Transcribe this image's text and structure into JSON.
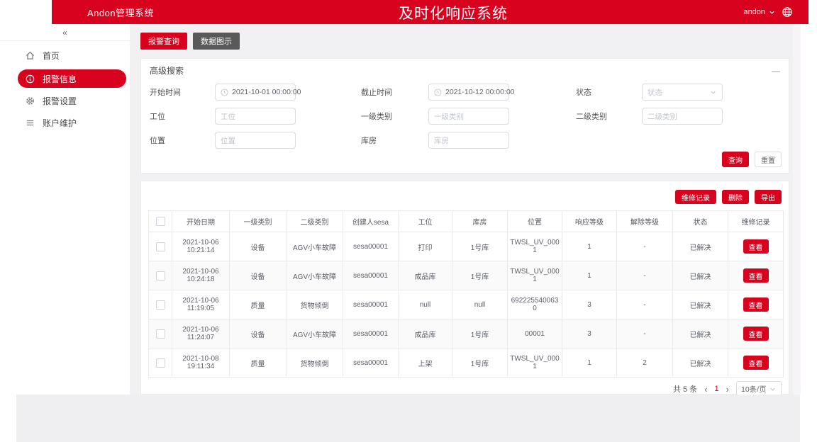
{
  "header": {
    "app_title": "Andon管理系统",
    "page_title": "及时化响应系统",
    "user_name": "andon"
  },
  "sidebar": {
    "collapse_icon": "«",
    "items": [
      {
        "label": "首页"
      },
      {
        "label": "报警信息"
      },
      {
        "label": "报警设置"
      },
      {
        "label": "账户维护"
      }
    ]
  },
  "tabs": [
    {
      "label": "报警查询"
    },
    {
      "label": "数据图示"
    }
  ],
  "search": {
    "title": "高级搜索",
    "fields": {
      "start_time": {
        "label": "开始时间",
        "value": "2021-10-01 00:00:00"
      },
      "end_time": {
        "label": "截止时间",
        "value": "2021-10-12 00:00:00"
      },
      "status": {
        "label": "状态",
        "placeholder": "状态"
      },
      "station": {
        "label": "工位",
        "placeholder": "工位"
      },
      "category1": {
        "label": "一级类别",
        "placeholder": "一级类别"
      },
      "category2": {
        "label": "二级类别",
        "placeholder": "二级类别"
      },
      "position": {
        "label": "位置",
        "placeholder": "位置"
      },
      "warehouse": {
        "label": "库房",
        "placeholder": "库房"
      }
    },
    "query_label": "查询",
    "reset_label": "重置"
  },
  "toolbar": {
    "repair_records_label": "维修记录",
    "delete_label": "删除",
    "export_label": "导出"
  },
  "table": {
    "columns": [
      "开始日期",
      "一级类别",
      "二级类别",
      "创建人sesa",
      "工位",
      "库房",
      "位置",
      "响应等级",
      "解除等级",
      "状态",
      "维修记录"
    ],
    "view_label": "查看",
    "rows": [
      {
        "date": "2021-10-06 10:21:14",
        "cat1": "设备",
        "cat2": "AGV小车故障",
        "creator": "sesa00001",
        "station": "打印",
        "warehouse": "1号库",
        "position": "TWSL_UV_0001",
        "resp": "1",
        "resolve": "-",
        "status": "已解决"
      },
      {
        "date": "2021-10-06 10:24:18",
        "cat1": "设备",
        "cat2": "AGV小车故障",
        "creator": "sesa00001",
        "station": "成品库",
        "warehouse": "1号库",
        "position": "TWSL_UV_0001",
        "resp": "1",
        "resolve": "-",
        "status": "已解决"
      },
      {
        "date": "2021-10-06 11:19:05",
        "cat1": "质量",
        "cat2": "货物倾倒",
        "creator": "sesa00001",
        "station": "null",
        "warehouse": "null",
        "position": "6922255400630",
        "resp": "3",
        "resolve": "-",
        "status": "已解决"
      },
      {
        "date": "2021-10-06 11:24:07",
        "cat1": "设备",
        "cat2": "AGV小车故障",
        "creator": "sesa00001",
        "station": "成品库",
        "warehouse": "1号库",
        "position": "00001",
        "resp": "3",
        "resolve": "-",
        "status": "已解决"
      },
      {
        "date": "2021-10-08 19:11:34",
        "cat1": "质量",
        "cat2": "货物倾倒",
        "creator": "sesa00001",
        "station": "上架",
        "warehouse": "1号库",
        "position": "TWSL_UV_0001",
        "resp": "1",
        "resolve": "2",
        "status": "已解决"
      }
    ]
  },
  "pagination": {
    "total": "共 5 条",
    "prev": "‹",
    "page": "1",
    "next": "›",
    "page_size": "10条/页"
  },
  "colors": {
    "accent": "#d8021f",
    "tab_inactive": "#595959"
  }
}
